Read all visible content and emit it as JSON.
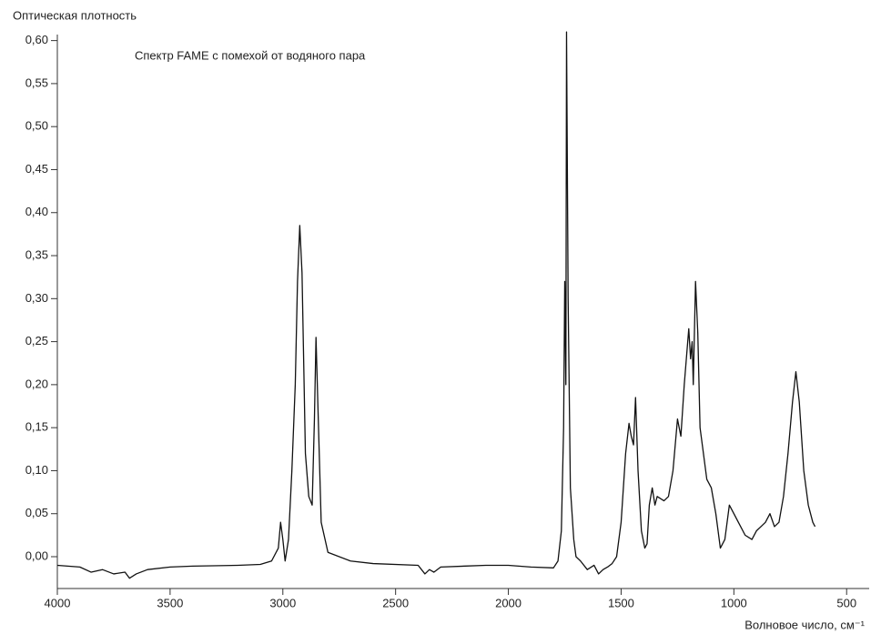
{
  "chart_data": {
    "type": "line",
    "ylabel": "Оптическая плотность",
    "xlabel": "Волновое число, см⁻¹",
    "annotation": "Спектр FAME с помехой от водяного пара",
    "color": "#111111",
    "xlim": [
      4000,
      400
    ],
    "ylim": [
      -0.037,
      0.607
    ],
    "xticks": [
      4000,
      3500,
      3000,
      2500,
      2000,
      1500,
      1000,
      500
    ],
    "yticks": [
      {
        "value": 0.0,
        "label": "0,00"
      },
      {
        "value": 0.05,
        "label": "0,05"
      },
      {
        "value": 0.1,
        "label": "0,10"
      },
      {
        "value": 0.15,
        "label": "0,15"
      },
      {
        "value": 0.2,
        "label": "0,20"
      },
      {
        "value": 0.25,
        "label": "0,25"
      },
      {
        "value": 0.3,
        "label": "0,30"
      },
      {
        "value": 0.35,
        "label": "0,35"
      },
      {
        "value": 0.4,
        "label": "0,40"
      },
      {
        "value": 0.45,
        "label": "0,45"
      },
      {
        "value": 0.5,
        "label": "0,50"
      },
      {
        "value": 0.55,
        "label": "0,55"
      },
      {
        "value": 0.6,
        "label": "0,60"
      }
    ],
    "x": [
      4000,
      3900,
      3850,
      3800,
      3750,
      3700,
      3680,
      3650,
      3600,
      3500,
      3400,
      3200,
      3100,
      3050,
      3020,
      3010,
      3000,
      2990,
      2975,
      2960,
      2945,
      2935,
      2925,
      2915,
      2900,
      2885,
      2870,
      2860,
      2853,
      2845,
      2830,
      2800,
      2700,
      2600,
      2400,
      2370,
      2350,
      2330,
      2300,
      2100,
      2000,
      1900,
      1800,
      1780,
      1765,
      1755,
      1750,
      1745,
      1742,
      1735,
      1725,
      1710,
      1700,
      1680,
      1650,
      1620,
      1600,
      1580,
      1560,
      1540,
      1520,
      1500,
      1480,
      1465,
      1455,
      1445,
      1436,
      1425,
      1410,
      1395,
      1385,
      1375,
      1362,
      1350,
      1340,
      1310,
      1290,
      1270,
      1250,
      1235,
      1220,
      1200,
      1192,
      1185,
      1180,
      1170,
      1160,
      1150,
      1120,
      1100,
      1080,
      1060,
      1040,
      1020,
      1000,
      980,
      950,
      920,
      900,
      880,
      860,
      840,
      820,
      800,
      780,
      760,
      740,
      725,
      710,
      690,
      670,
      650,
      640
    ],
    "values": [
      -0.01,
      -0.012,
      -0.018,
      -0.015,
      -0.02,
      -0.018,
      -0.025,
      -0.02,
      -0.015,
      -0.012,
      -0.011,
      -0.01,
      -0.009,
      -0.005,
      0.01,
      0.04,
      0.02,
      -0.005,
      0.02,
      0.1,
      0.2,
      0.32,
      0.385,
      0.33,
      0.12,
      0.07,
      0.06,
      0.16,
      0.255,
      0.18,
      0.04,
      0.005,
      -0.005,
      -0.008,
      -0.01,
      -0.02,
      -0.015,
      -0.018,
      -0.012,
      -0.01,
      -0.01,
      -0.012,
      -0.013,
      -0.005,
      0.03,
      0.15,
      0.32,
      0.2,
      0.61,
      0.3,
      0.08,
      0.02,
      0.0,
      -0.005,
      -0.015,
      -0.01,
      -0.02,
      -0.015,
      -0.012,
      -0.008,
      0.0,
      0.04,
      0.12,
      0.155,
      0.14,
      0.13,
      0.185,
      0.1,
      0.03,
      0.01,
      0.015,
      0.06,
      0.08,
      0.06,
      0.07,
      0.065,
      0.07,
      0.1,
      0.16,
      0.14,
      0.2,
      0.265,
      0.23,
      0.25,
      0.2,
      0.32,
      0.26,
      0.15,
      0.09,
      0.08,
      0.05,
      0.01,
      0.02,
      0.06,
      0.05,
      0.04,
      0.025,
      0.02,
      0.03,
      0.035,
      0.04,
      0.05,
      0.035,
      0.04,
      0.07,
      0.12,
      0.18,
      0.215,
      0.18,
      0.1,
      0.06,
      0.04,
      0.035
    ]
  }
}
